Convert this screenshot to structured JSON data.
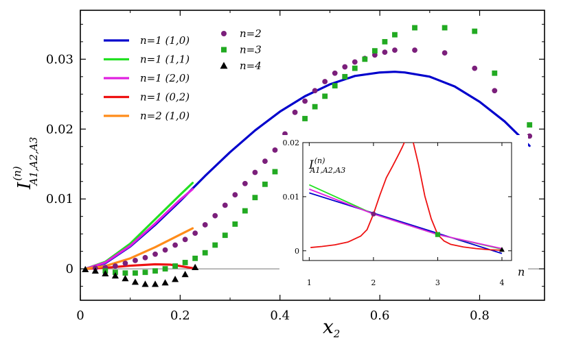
{
  "chart_data": {
    "type": "line",
    "xlabel": "x",
    "xlabel_sub": "2",
    "ylabel": "I",
    "ylabel_sup": "(n)",
    "ylabel_sub": "A1,A2,A3",
    "xlim": [
      0,
      0.93
    ],
    "ylim": [
      -0.0045,
      0.037
    ],
    "xticks": [
      0,
      0.2,
      0.4,
      0.6,
      0.8
    ],
    "xtick_labels": [
      "0",
      "0.2",
      "0.4",
      "0.6",
      "0.8"
    ],
    "yticks": [
      0,
      0.01,
      0.02,
      0.03
    ],
    "ytick_labels": [
      "0",
      "0.01",
      "0.02",
      "0.03"
    ],
    "legend_position": "top-left",
    "series": [
      {
        "name": "n=1 (1,0)",
        "legend": "n=1  (1,0)",
        "kind": "line",
        "color": "#0000cc",
        "x": [
          0.01,
          0.05,
          0.1,
          0.15,
          0.2,
          0.25,
          0.3,
          0.35,
          0.4,
          0.45,
          0.5,
          0.55,
          0.6,
          0.63,
          0.65,
          0.7,
          0.75,
          0.8,
          0.85,
          0.9
        ],
        "y": [
          0.0,
          0.0008,
          0.0032,
          0.0063,
          0.0097,
          0.0133,
          0.0167,
          0.0198,
          0.0225,
          0.0247,
          0.0264,
          0.0276,
          0.0281,
          0.0282,
          0.0281,
          0.0275,
          0.0261,
          0.0239,
          0.0211,
          0.0176
        ]
      },
      {
        "name": "n=1 (1,1)",
        "legend": "n=1  (1,1)",
        "kind": "line",
        "color": "#22e022",
        "x": [
          0.01,
          0.05,
          0.1,
          0.15,
          0.2,
          0.225
        ],
        "y": [
          0.0,
          0.001,
          0.0036,
          0.0071,
          0.0106,
          0.0123
        ]
      },
      {
        "name": "n=1 (2,0)",
        "legend": "n=1  (2,0)",
        "kind": "line",
        "color": "#e020e0",
        "x": [
          0.01,
          0.05,
          0.1,
          0.15,
          0.2,
          0.225
        ],
        "y": [
          0.0,
          0.0009,
          0.0033,
          0.0065,
          0.0099,
          0.0114
        ]
      },
      {
        "name": "n=1 (0,2)",
        "legend": "n=1  (0,2)",
        "kind": "line",
        "color": "#ee1111",
        "x": [
          0.01,
          0.05,
          0.1,
          0.15,
          0.18,
          0.2,
          0.225
        ],
        "y": [
          0.0,
          0.00015,
          0.00045,
          0.00065,
          0.0006,
          0.0004,
          0.0001
        ]
      },
      {
        "name": "n=2 (1,0)",
        "legend": "n=2  (1,0)",
        "kind": "line",
        "color": "#ff8c1a",
        "x": [
          0.01,
          0.05,
          0.1,
          0.15,
          0.2,
          0.225
        ],
        "y": [
          0.0,
          0.0004,
          0.0015,
          0.0031,
          0.0049,
          0.0058
        ]
      },
      {
        "name": "n=2",
        "legend": "n=2",
        "kind": "circle",
        "color": "#7b1f7b",
        "x": [
          0.03,
          0.05,
          0.07,
          0.09,
          0.11,
          0.13,
          0.15,
          0.17,
          0.19,
          0.21,
          0.23,
          0.25,
          0.27,
          0.29,
          0.31,
          0.33,
          0.35,
          0.37,
          0.39,
          0.41,
          0.43,
          0.45,
          0.47,
          0.49,
          0.51,
          0.53,
          0.55,
          0.57,
          0.59,
          0.61,
          0.63,
          0.67,
          0.73,
          0.79,
          0.83,
          0.9
        ],
        "y": [
          0.0001,
          0.0002,
          0.0004,
          0.0008,
          0.0012,
          0.0016,
          0.0021,
          0.0027,
          0.0034,
          0.0042,
          0.0051,
          0.0063,
          0.0076,
          0.0091,
          0.0106,
          0.0122,
          0.0138,
          0.0154,
          0.017,
          0.0193,
          0.0224,
          0.024,
          0.0255,
          0.0268,
          0.028,
          0.0289,
          0.0296,
          0.0301,
          0.0306,
          0.031,
          0.0313,
          0.0313,
          0.0309,
          0.0287,
          0.0255,
          0.019
        ]
      },
      {
        "name": "n=3",
        "legend": "n=3",
        "kind": "square",
        "color": "#22aa22",
        "x": [
          0.05,
          0.07,
          0.09,
          0.11,
          0.13,
          0.15,
          0.17,
          0.19,
          0.21,
          0.23,
          0.25,
          0.27,
          0.29,
          0.31,
          0.33,
          0.35,
          0.37,
          0.39,
          0.41,
          0.43,
          0.45,
          0.47,
          0.49,
          0.51,
          0.53,
          0.55,
          0.57,
          0.59,
          0.61,
          0.63,
          0.67,
          0.73,
          0.79,
          0.83,
          0.9
        ],
        "y": [
          -0.0003,
          -0.0005,
          -0.0006,
          -0.0006,
          -0.0005,
          -0.0003,
          0.0,
          0.0004,
          0.0009,
          0.0015,
          0.0023,
          0.0034,
          0.0048,
          0.0064,
          0.0083,
          0.0102,
          0.0121,
          0.0139,
          0.0155,
          0.0173,
          0.0215,
          0.0232,
          0.0247,
          0.0262,
          0.0275,
          0.0287,
          0.03,
          0.0312,
          0.0325,
          0.0335,
          0.0345,
          0.0345,
          0.034,
          0.028,
          0.0206
        ]
      },
      {
        "name": "n=4",
        "legend": "n=4",
        "kind": "triangle",
        "color": "#000000",
        "x": [
          0.01,
          0.03,
          0.05,
          0.07,
          0.09,
          0.11,
          0.13,
          0.15,
          0.17,
          0.19,
          0.21,
          0.23
        ],
        "y": [
          -0.0001,
          -0.0003,
          -0.0007,
          -0.001,
          -0.0014,
          -0.0019,
          -0.0022,
          -0.0022,
          -0.002,
          -0.0015,
          -0.0008,
          0.0002
        ]
      }
    ],
    "inset": {
      "ylabel": "I",
      "ylabel_sup": "(n)",
      "ylabel_sub": "A1,A2,A3",
      "xlabel": "n",
      "xlim": [
        0.9,
        4.15
      ],
      "ylim": [
        -0.0018,
        0.02
      ],
      "xticks": [
        1,
        2,
        3,
        4
      ],
      "xtick_labels": [
        "1",
        "2",
        "3",
        "4"
      ],
      "yticks": [
        0,
        0.01,
        0.02
      ],
      "ytick_labels": [
        "0",
        "0.01",
        "0.02"
      ],
      "lines": [
        {
          "name": "inset blue",
          "color": "#0000cc",
          "x": [
            1,
            4
          ],
          "y": [
            0.0107,
            -0.0005
          ]
        },
        {
          "name": "inset green",
          "color": "#22e022",
          "x": [
            1,
            2,
            3,
            4
          ],
          "y": [
            0.0122,
            0.0068,
            0.003,
            0.0003
          ]
        },
        {
          "name": "inset magenta",
          "color": "#e020e0",
          "x": [
            1,
            2,
            3,
            4
          ],
          "y": [
            0.0114,
            0.0068,
            0.003,
            0.0004
          ]
        },
        {
          "name": "inset red left",
          "color": "#ee1111",
          "x": [
            1.02,
            1.2,
            1.4,
            1.6,
            1.8,
            1.9,
            2.0,
            2.1,
            2.2,
            2.3,
            2.4,
            2.45,
            2.48,
            2.5
          ],
          "y": [
            0.0006,
            0.0008,
            0.0011,
            0.0016,
            0.0027,
            0.0039,
            0.0068,
            0.0103,
            0.0135,
            0.0157,
            0.018,
            0.0192,
            0.02,
            0.021
          ]
        },
        {
          "name": "inset red right",
          "color": "#ee1111",
          "x": [
            2.6,
            2.62,
            2.65,
            2.7,
            2.8,
            2.9,
            3.0,
            3.1,
            3.2,
            3.4,
            3.6,
            3.8,
            4.0
          ],
          "y": [
            0.021,
            0.02,
            0.0185,
            0.016,
            0.0101,
            0.0059,
            0.003,
            0.0018,
            0.0012,
            0.0007,
            0.0004,
            0.0002,
            0.0001
          ]
        }
      ],
      "points": [
        {
          "name": "inset-point-n2",
          "kind": "circle",
          "color": "#7b1f7b",
          "x": 2,
          "y": 0.0068
        },
        {
          "name": "inset-point-n3",
          "kind": "square",
          "color": "#22aa22",
          "x": 3,
          "y": 0.003
        },
        {
          "name": "inset-point-n4",
          "kind": "triangle",
          "color": "#000000",
          "x": 4,
          "y": 0.0002
        }
      ]
    }
  }
}
